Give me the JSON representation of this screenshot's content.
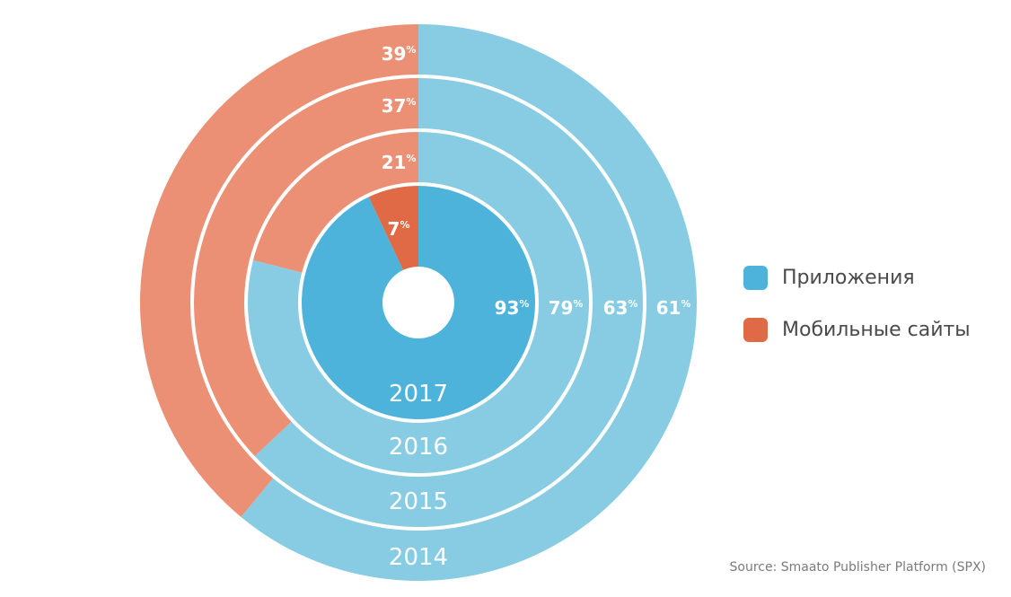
{
  "chart_data": {
    "type": "pie",
    "subtype": "concentric-rings",
    "series_names": [
      "Приложения",
      "Мобильные сайты"
    ],
    "rings": [
      {
        "year": "2014",
        "apps": 61,
        "web": 39
      },
      {
        "year": "2015",
        "apps": 63,
        "web": 37
      },
      {
        "year": "2016",
        "apps": 79,
        "web": 21
      },
      {
        "year": "2017",
        "apps": 93,
        "web": 7
      }
    ],
    "unit": "%",
    "legend_position": "right"
  },
  "legend": [
    {
      "label": "Приложения",
      "color": "#4db3db"
    },
    {
      "label": "Мобильные сайты",
      "color": "#e06a46"
    }
  ],
  "source": "Source: Smaato Publisher Platform (SPX)",
  "colors": {
    "apps_inner": "#4db3db",
    "apps_outer": "#87cce3",
    "web_inner": "#e06a46",
    "web_outer": "#ec9075",
    "text": "#ffffff"
  }
}
